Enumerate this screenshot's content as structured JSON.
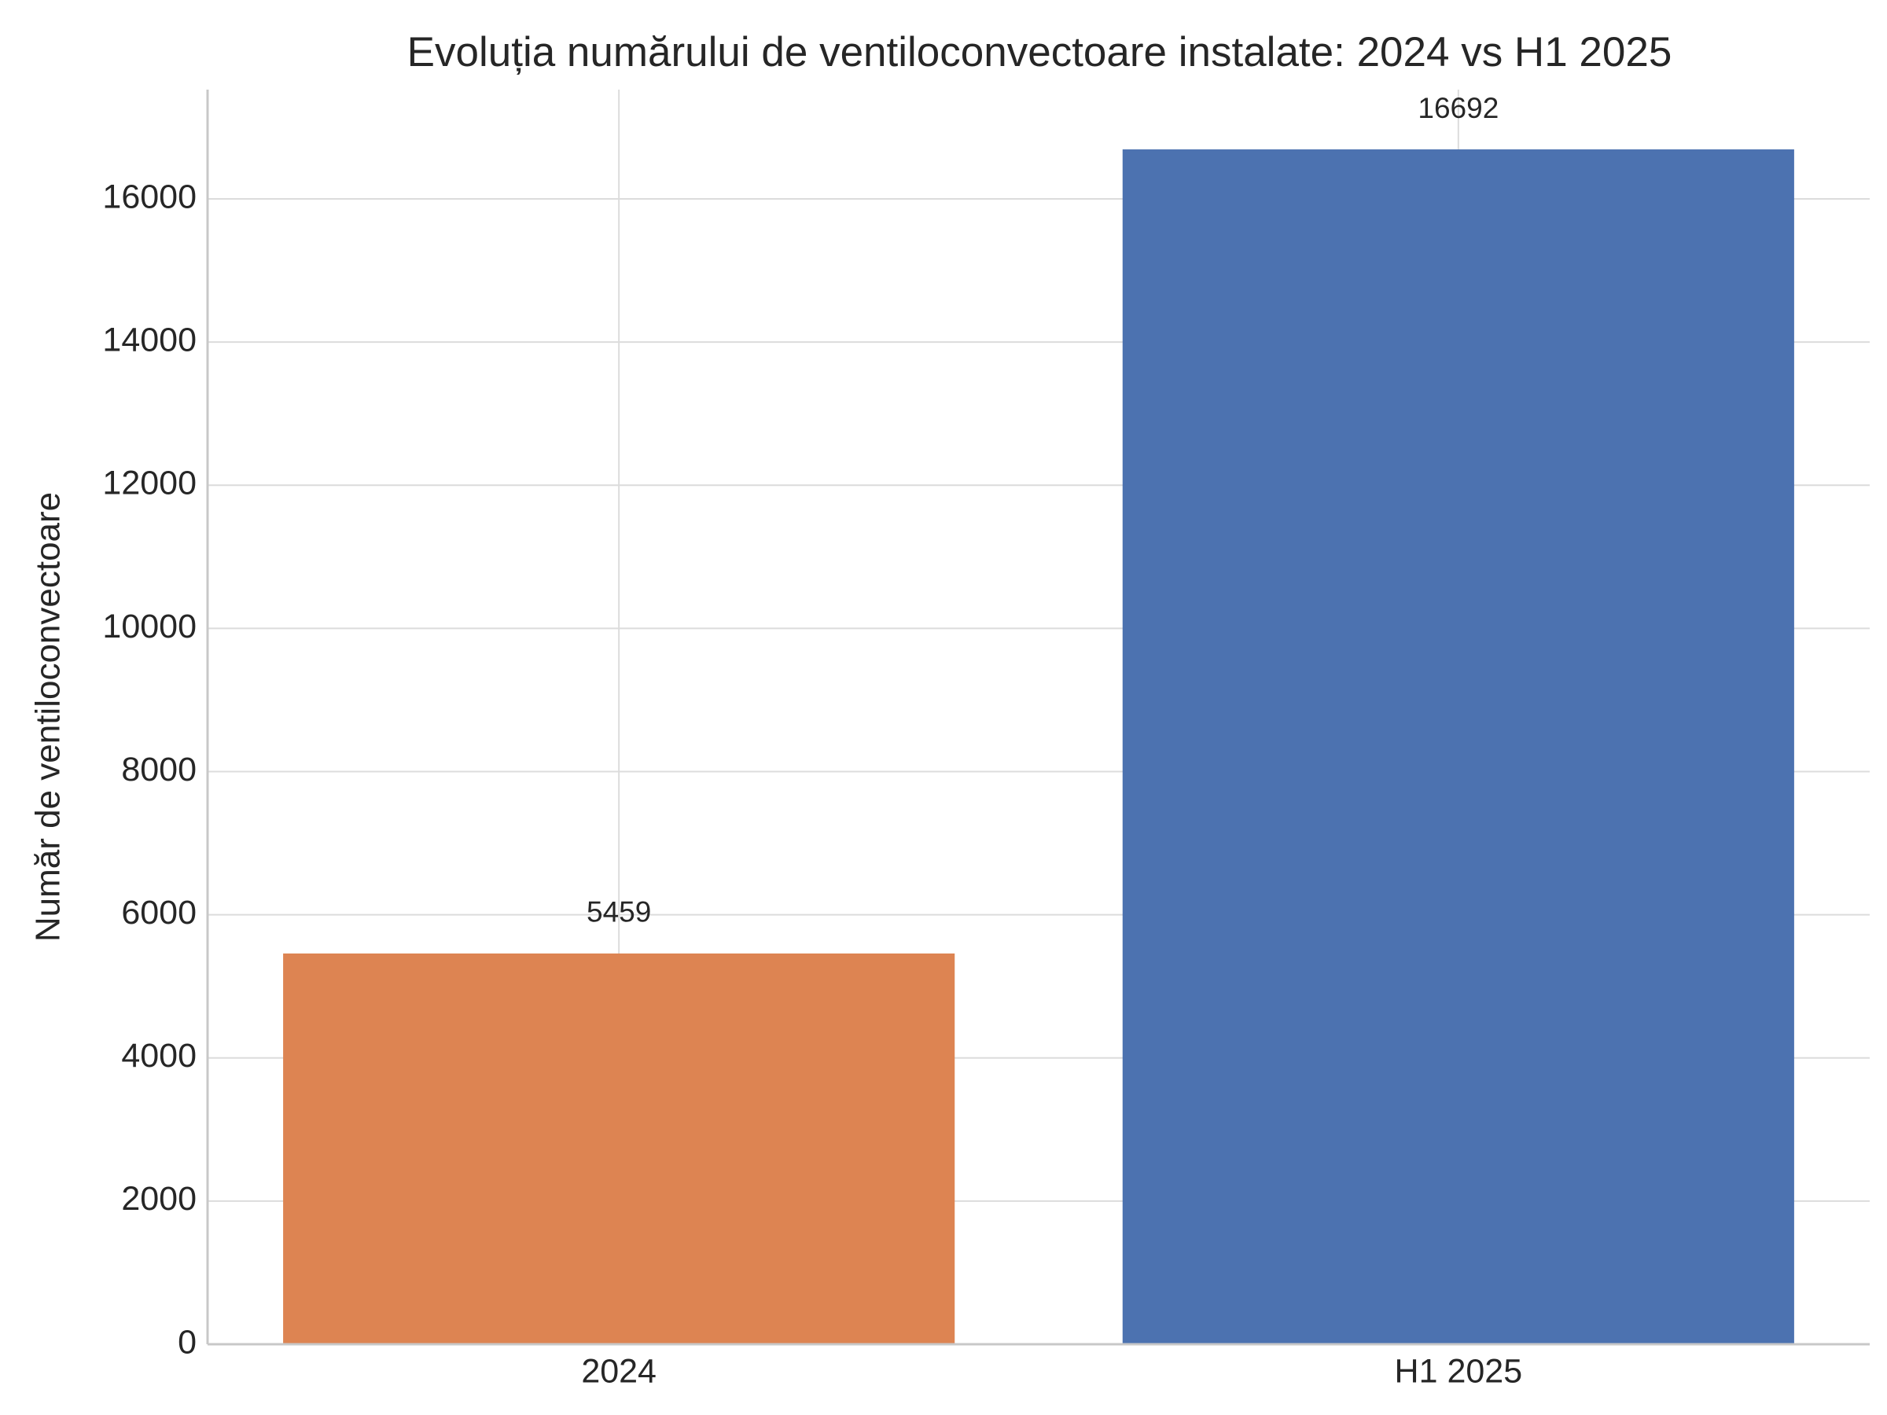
{
  "chart_data": {
    "type": "bar",
    "title": "Evoluția numărului de ventiloconvectoare instalate: 2024 vs H1 2025",
    "y_label": "Număr de ventiloconvectoare",
    "categories": [
      "2024",
      "H1 2025"
    ],
    "values": [
      5459,
      16692
    ],
    "colors": [
      "#dd8452",
      "#4c72b0"
    ],
    "ylim": [
      0,
      17527
    ],
    "yticks": [
      0,
      2000,
      4000,
      6000,
      8000,
      10000,
      12000,
      14000,
      16000
    ],
    "grid": true
  }
}
